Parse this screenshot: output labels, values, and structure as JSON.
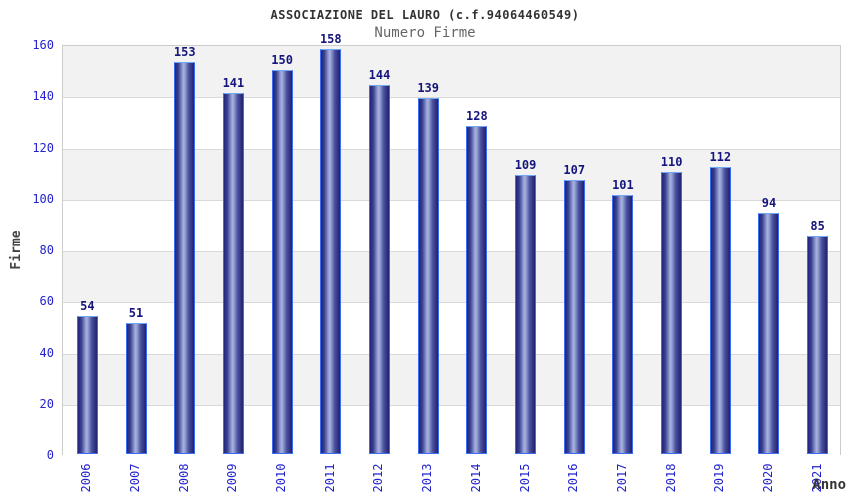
{
  "chart_data": {
    "type": "bar",
    "title": "ASSOCIAZIONE DEL LAURO (c.f.94064460549)",
    "subtitle": "Numero Firme",
    "xlabel": "Anno",
    "ylabel": "Firme",
    "categories": [
      "2006",
      "2007",
      "2008",
      "2009",
      "2010",
      "2011",
      "2012",
      "2013",
      "2014",
      "2015",
      "2016",
      "2017",
      "2018",
      "2019",
      "2020",
      "2021"
    ],
    "values": [
      54,
      51,
      153,
      141,
      150,
      158,
      144,
      139,
      128,
      109,
      107,
      101,
      110,
      112,
      94,
      85
    ],
    "ylim": [
      0,
      160
    ],
    "ytick_step": 20,
    "grid": true,
    "legend": "none",
    "colors": {
      "bar_dark": "#23237b",
      "bar_highlight": "#aab3de",
      "bar_border": "#3d6cf0",
      "bar_top_border": "#6fa8f5",
      "tick_label": "#2323cd",
      "value_label": "#15157d",
      "title": "#333333",
      "subtitle": "#666666",
      "axis_title": "#444444",
      "band_gray": "#f2f2f2",
      "band_white": "#ffffff",
      "gridline": "#d9d9d9",
      "plot_border": "#cccccc"
    }
  }
}
